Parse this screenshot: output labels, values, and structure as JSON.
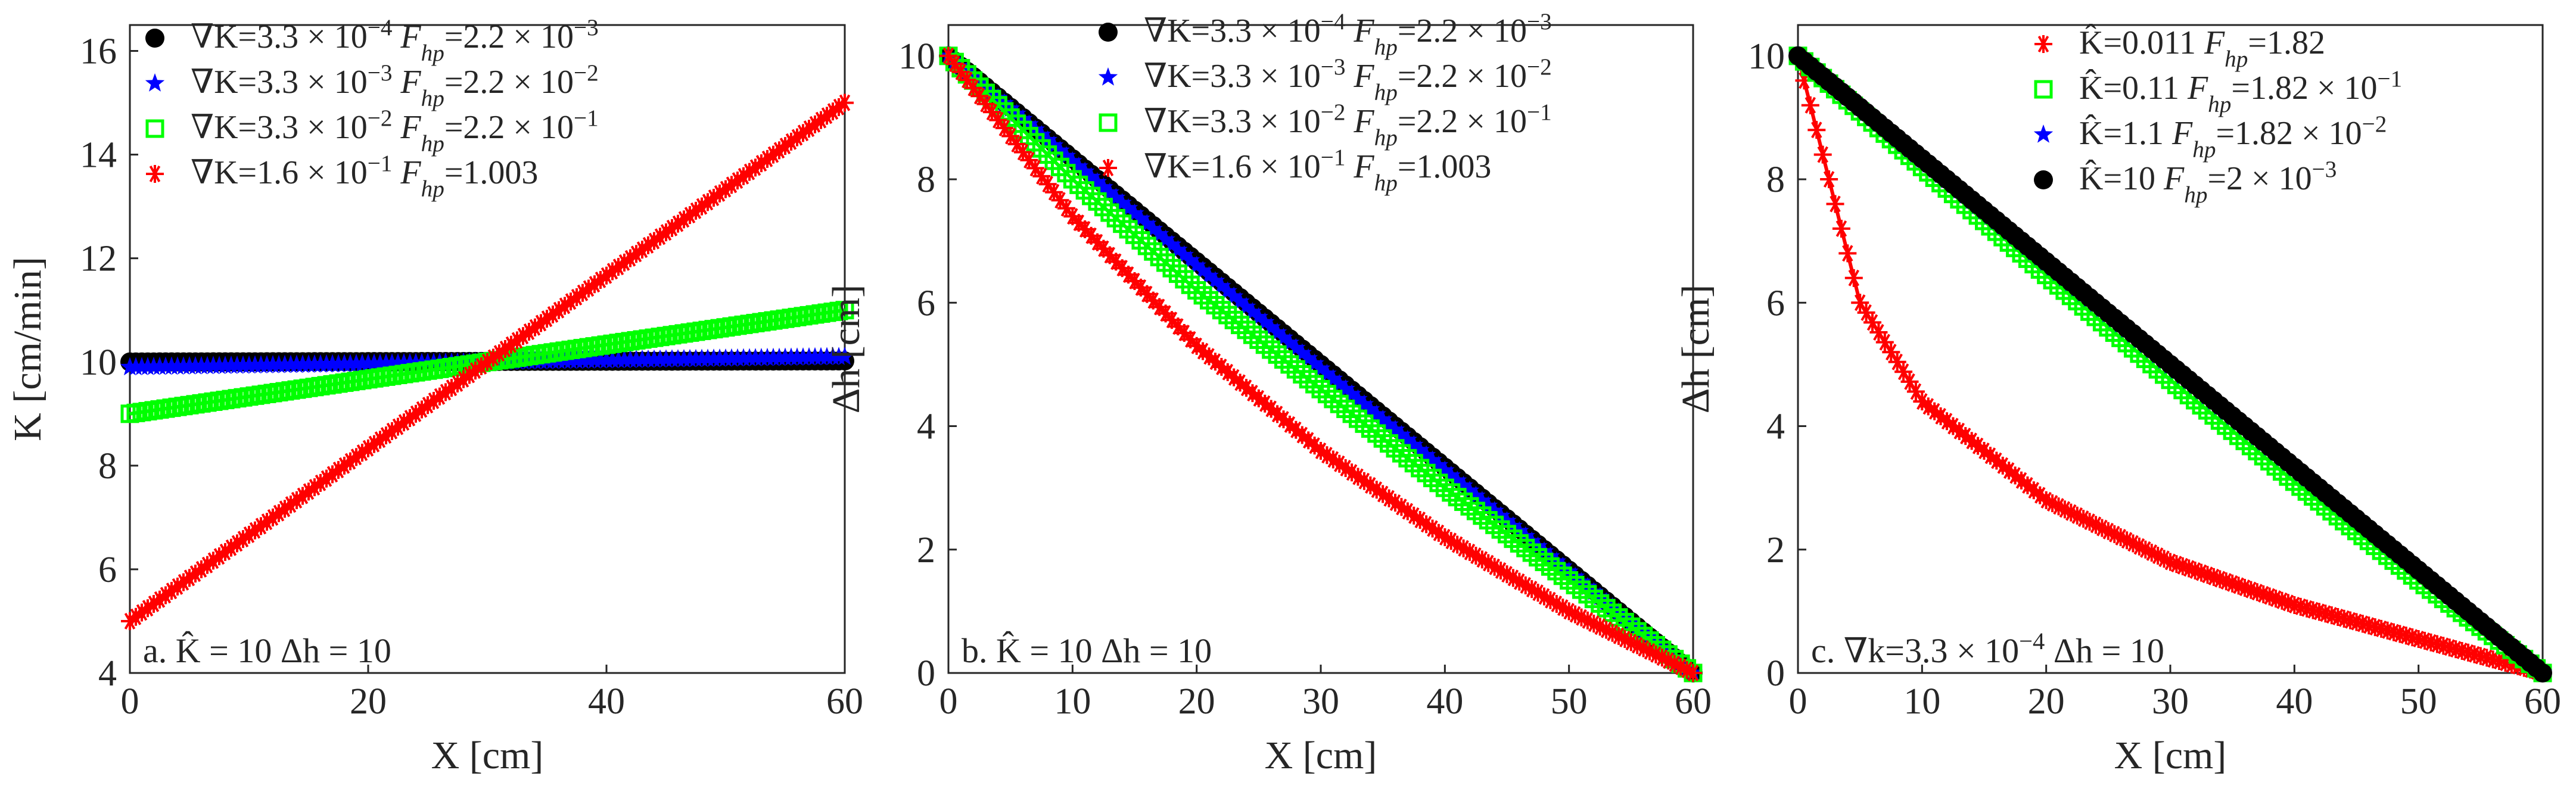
{
  "chart_data": [
    {
      "type": "line",
      "panel_label": "a. K̂ = 10 Δh = 10",
      "xlabel": "X [cm]",
      "ylabel": "K [cm/min]",
      "xlim": [
        0,
        60
      ],
      "ylim": [
        4,
        16.5
      ],
      "xticks": [
        0,
        20,
        40,
        60
      ],
      "yticks": [
        4,
        6,
        8,
        10,
        12,
        14,
        16
      ],
      "grid": false,
      "legend_position": "top-left",
      "series": [
        {
          "name": "∇K=3.3 × 10⁻⁴ F_hp=2.2 × 10⁻³",
          "color": "#000000",
          "marker": "dot",
          "x": [
            0,
            60
          ],
          "y": [
            10,
            10.02
          ]
        },
        {
          "name": "∇K=3.3 × 10⁻³ F_hp=2.2 × 10⁻²",
          "color": "#0000ff",
          "marker": "star",
          "x": [
            0,
            60
          ],
          "y": [
            9.9,
            10.1
          ]
        },
        {
          "name": "∇K=3.3 × 10⁻² F_hp=2.2 × 10⁻¹",
          "color": "#00ff00",
          "marker": "square",
          "x": [
            0,
            60
          ],
          "y": [
            9.0,
            11.0
          ]
        },
        {
          "name": "∇K=1.6 × 10⁻¹ F_hp=1.003",
          "color": "#ff0000",
          "marker": "asterisk",
          "x": [
            0,
            60
          ],
          "y": [
            5.0,
            15.0
          ]
        }
      ]
    },
    {
      "type": "line",
      "panel_label": "b. K̂ = 10 Δh = 10",
      "xlabel": "X [cm]",
      "ylabel": "Δh [cm]",
      "xlim": [
        0,
        60
      ],
      "ylim": [
        0,
        10.5
      ],
      "xticks": [
        0,
        10,
        20,
        30,
        40,
        50,
        60
      ],
      "yticks": [
        0,
        2,
        4,
        6,
        8,
        10
      ],
      "grid": false,
      "legend_position": "top-right",
      "series": [
        {
          "name": "∇K=3.3 × 10⁻⁴ F_hp=2.2 × 10⁻³",
          "color": "#000000",
          "marker": "dot",
          "x": [
            0,
            10,
            20,
            30,
            40,
            50,
            60
          ],
          "y": [
            10,
            8.333,
            6.667,
            5.0,
            3.333,
            1.667,
            0
          ]
        },
        {
          "name": "∇K=3.3 × 10⁻³ F_hp=2.2 × 10⁻²",
          "color": "#0000ff",
          "marker": "star",
          "x": [
            0,
            10,
            20,
            30,
            40,
            50,
            60
          ],
          "y": [
            10,
            8.29,
            6.6,
            4.93,
            3.28,
            1.64,
            0
          ]
        },
        {
          "name": "∇K=3.3 × 10⁻² F_hp=2.2 × 10⁻¹",
          "color": "#00ff00",
          "marker": "square",
          "x": [
            0,
            10,
            20,
            30,
            40,
            50,
            60
          ],
          "y": [
            10,
            8.0,
            6.2,
            4.6,
            3.0,
            1.5,
            0
          ]
        },
        {
          "name": "∇K=1.6 × 10⁻¹ F_hp=1.003",
          "color": "#ff0000",
          "marker": "asterisk",
          "x": [
            0,
            10,
            20,
            30,
            40,
            50,
            60
          ],
          "y": [
            10,
            7.4,
            5.3,
            3.6,
            2.2,
            1.0,
            0
          ]
        }
      ]
    },
    {
      "type": "line",
      "panel_label": "c. ∇k=3.3 × 10⁻⁴ Δh = 10",
      "xlabel": "X [cm]",
      "ylabel": "Δh [cm]",
      "xlim": [
        0,
        60
      ],
      "ylim": [
        0,
        10.5
      ],
      "xticks": [
        0,
        10,
        20,
        30,
        40,
        50,
        60
      ],
      "yticks": [
        0,
        2,
        4,
        6,
        8,
        10
      ],
      "grid": false,
      "legend_position": "top-right",
      "series": [
        {
          "name": "K̂=0.011 F_hp=1.82",
          "color": "#ff0000",
          "marker": "asterisk",
          "x": [
            0,
            5,
            10,
            20,
            30,
            40,
            50,
            60
          ],
          "y": [
            10,
            6.0,
            4.4,
            2.8,
            1.8,
            1.1,
            0.55,
            0
          ]
        },
        {
          "name": "K̂=0.11 F_hp=1.82 × 10⁻¹",
          "color": "#00ff00",
          "marker": "square",
          "x": [
            0,
            10,
            20,
            30,
            40,
            50,
            60
          ],
          "y": [
            10,
            8.2,
            6.45,
            4.75,
            3.1,
            1.5,
            0
          ]
        },
        {
          "name": "K̂=1.1 F_hp=1.82 × 10⁻²",
          "color": "#0000ff",
          "marker": "star",
          "x": [
            0,
            10,
            20,
            30,
            40,
            50,
            60
          ],
          "y": [
            10,
            8.32,
            6.65,
            4.98,
            3.32,
            1.66,
            0
          ]
        },
        {
          "name": "K̂=10 F_hp=2 × 10⁻³",
          "color": "#000000",
          "marker": "dot",
          "x": [
            0,
            10,
            20,
            30,
            40,
            50,
            60
          ],
          "y": [
            10,
            8.333,
            6.667,
            5.0,
            3.333,
            1.667,
            0
          ]
        }
      ]
    }
  ]
}
